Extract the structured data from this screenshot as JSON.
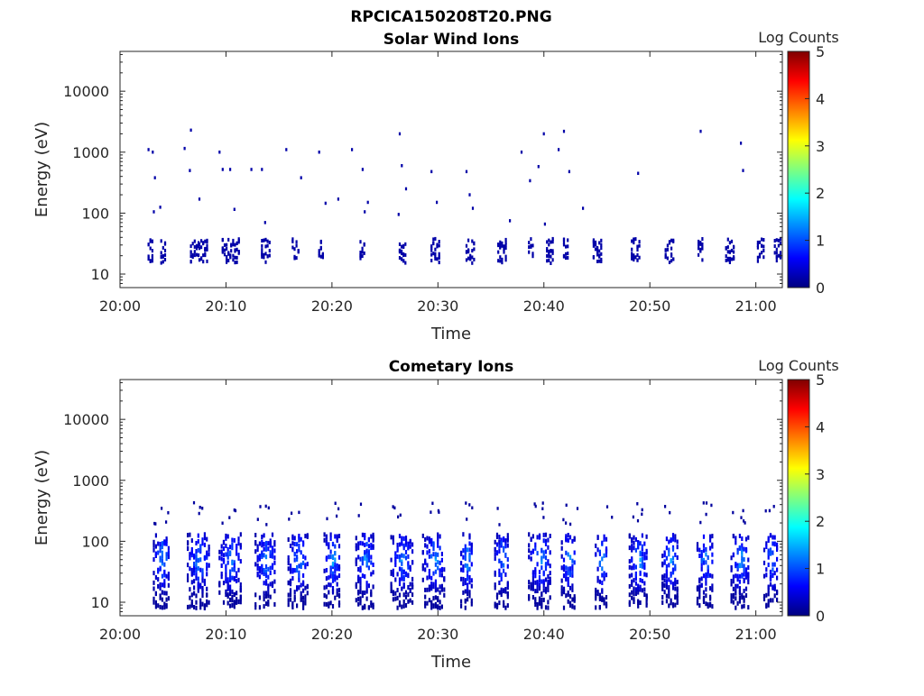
{
  "figure_title": "RPCICA150208T20.PNG",
  "colors": {
    "axes": "#262626",
    "colormap": [
      "#00007f",
      "#0000ff",
      "#007fff",
      "#00ffff",
      "#7fff7f",
      "#ffff00",
      "#ff7f00",
      "#ff0000",
      "#7f0000"
    ]
  },
  "chart_data": [
    {
      "type": "heatmap",
      "title": "Solar Wind Ions",
      "xlabel": "Time",
      "ylabel": "Energy (eV)",
      "x_ticks": [
        "20:00",
        "20:10",
        "20:20",
        "20:30",
        "20:40",
        "20:50",
        "21:00"
      ],
      "x_tick_minutes": [
        0,
        10,
        20,
        30,
        40,
        50,
        60
      ],
      "xlim_minutes": [
        0,
        62.5
      ],
      "y_scale": "log",
      "ylim": [
        6,
        45000
      ],
      "y_ticks": [
        "10",
        "100",
        "1000",
        "10000"
      ],
      "y_tick_values": [
        10,
        100,
        1000,
        10000
      ],
      "colorbar": {
        "label": "Log Counts",
        "range": [
          0,
          5
        ],
        "ticks": [
          "0",
          "1",
          "2",
          "3",
          "4",
          "5"
        ]
      },
      "bursts_minutes": [
        2.6,
        3.8,
        6.6,
        7.4,
        9.6,
        10.4,
        13.3,
        16.2,
        18.7,
        22.6,
        26.3,
        29.3,
        32.6,
        35.6,
        38.5,
        40.2,
        41.8,
        44.6,
        48.2,
        51.4,
        54.5,
        57.1,
        60.1,
        61.7
      ],
      "burst_energy_ev": [
        15,
        38
      ],
      "burst_log_counts": 0.2,
      "sparse_points": [
        [
          2.6,
          1100
        ],
        [
          3.0,
          1000
        ],
        [
          3.2,
          380
        ],
        [
          3.1,
          105
        ],
        [
          3.7,
          125
        ],
        [
          6.0,
          1150
        ],
        [
          6.6,
          2300
        ],
        [
          6.5,
          500
        ],
        [
          7.4,
          170
        ],
        [
          9.3,
          1000
        ],
        [
          9.6,
          520
        ],
        [
          10.3,
          520
        ],
        [
          10.7,
          115
        ],
        [
          12.3,
          520
        ],
        [
          13.3,
          520
        ],
        [
          13.6,
          70
        ],
        [
          15.6,
          1100
        ],
        [
          17.0,
          380
        ],
        [
          18.7,
          1000
        ],
        [
          19.3,
          145
        ],
        [
          20.5,
          170
        ],
        [
          21.8,
          1100
        ],
        [
          22.8,
          520
        ],
        [
          23.3,
          150
        ],
        [
          23.0,
          105
        ],
        [
          26.3,
          2000
        ],
        [
          26.5,
          600
        ],
        [
          26.9,
          250
        ],
        [
          26.2,
          95
        ],
        [
          29.3,
          480
        ],
        [
          29.8,
          150
        ],
        [
          32.6,
          480
        ],
        [
          32.9,
          200
        ],
        [
          33.2,
          120
        ],
        [
          36.7,
          75
        ],
        [
          37.8,
          1000
        ],
        [
          38.6,
          340
        ],
        [
          39.4,
          580
        ],
        [
          40.0,
          66
        ],
        [
          39.9,
          2000
        ],
        [
          41.3,
          1100
        ],
        [
          41.8,
          2200
        ],
        [
          42.3,
          480
        ],
        [
          43.6,
          120
        ],
        [
          48.8,
          450
        ],
        [
          54.7,
          2200
        ],
        [
          58.5,
          1400
        ],
        [
          58.7,
          500
        ]
      ]
    },
    {
      "type": "heatmap",
      "title": "Cometary Ions",
      "xlabel": "Time",
      "ylabel": "Energy (eV)",
      "x_ticks": [
        "20:00",
        "20:10",
        "20:20",
        "20:30",
        "20:40",
        "20:50",
        "21:00"
      ],
      "x_tick_minutes": [
        0,
        10,
        20,
        30,
        40,
        50,
        60
      ],
      "xlim_minutes": [
        0,
        62.5
      ],
      "y_scale": "log",
      "ylim": [
        6,
        45000
      ],
      "y_ticks": [
        "10",
        "100",
        "1000",
        "10000"
      ],
      "y_tick_values": [
        10,
        100,
        1000,
        10000
      ],
      "colorbar": {
        "label": "Log Counts",
        "range": [
          0,
          5
        ],
        "ticks": [
          "0",
          "1",
          "2",
          "3",
          "4",
          "5"
        ]
      },
      "bursts_minutes": [
        3.6,
        6.8,
        9.8,
        13.2,
        16.3,
        19.7,
        22.7,
        26.0,
        29.0,
        32.6,
        35.8,
        39.0,
        42.1,
        45.3,
        48.5,
        51.6,
        54.9,
        58.1,
        61.2
      ],
      "burst_energy_ev": [
        8,
        130
      ],
      "burst_peak_energy_ev": 50,
      "burst_peak_log_counts": 1.6,
      "outlier_energy_ev": [
        180,
        450
      ]
    }
  ]
}
